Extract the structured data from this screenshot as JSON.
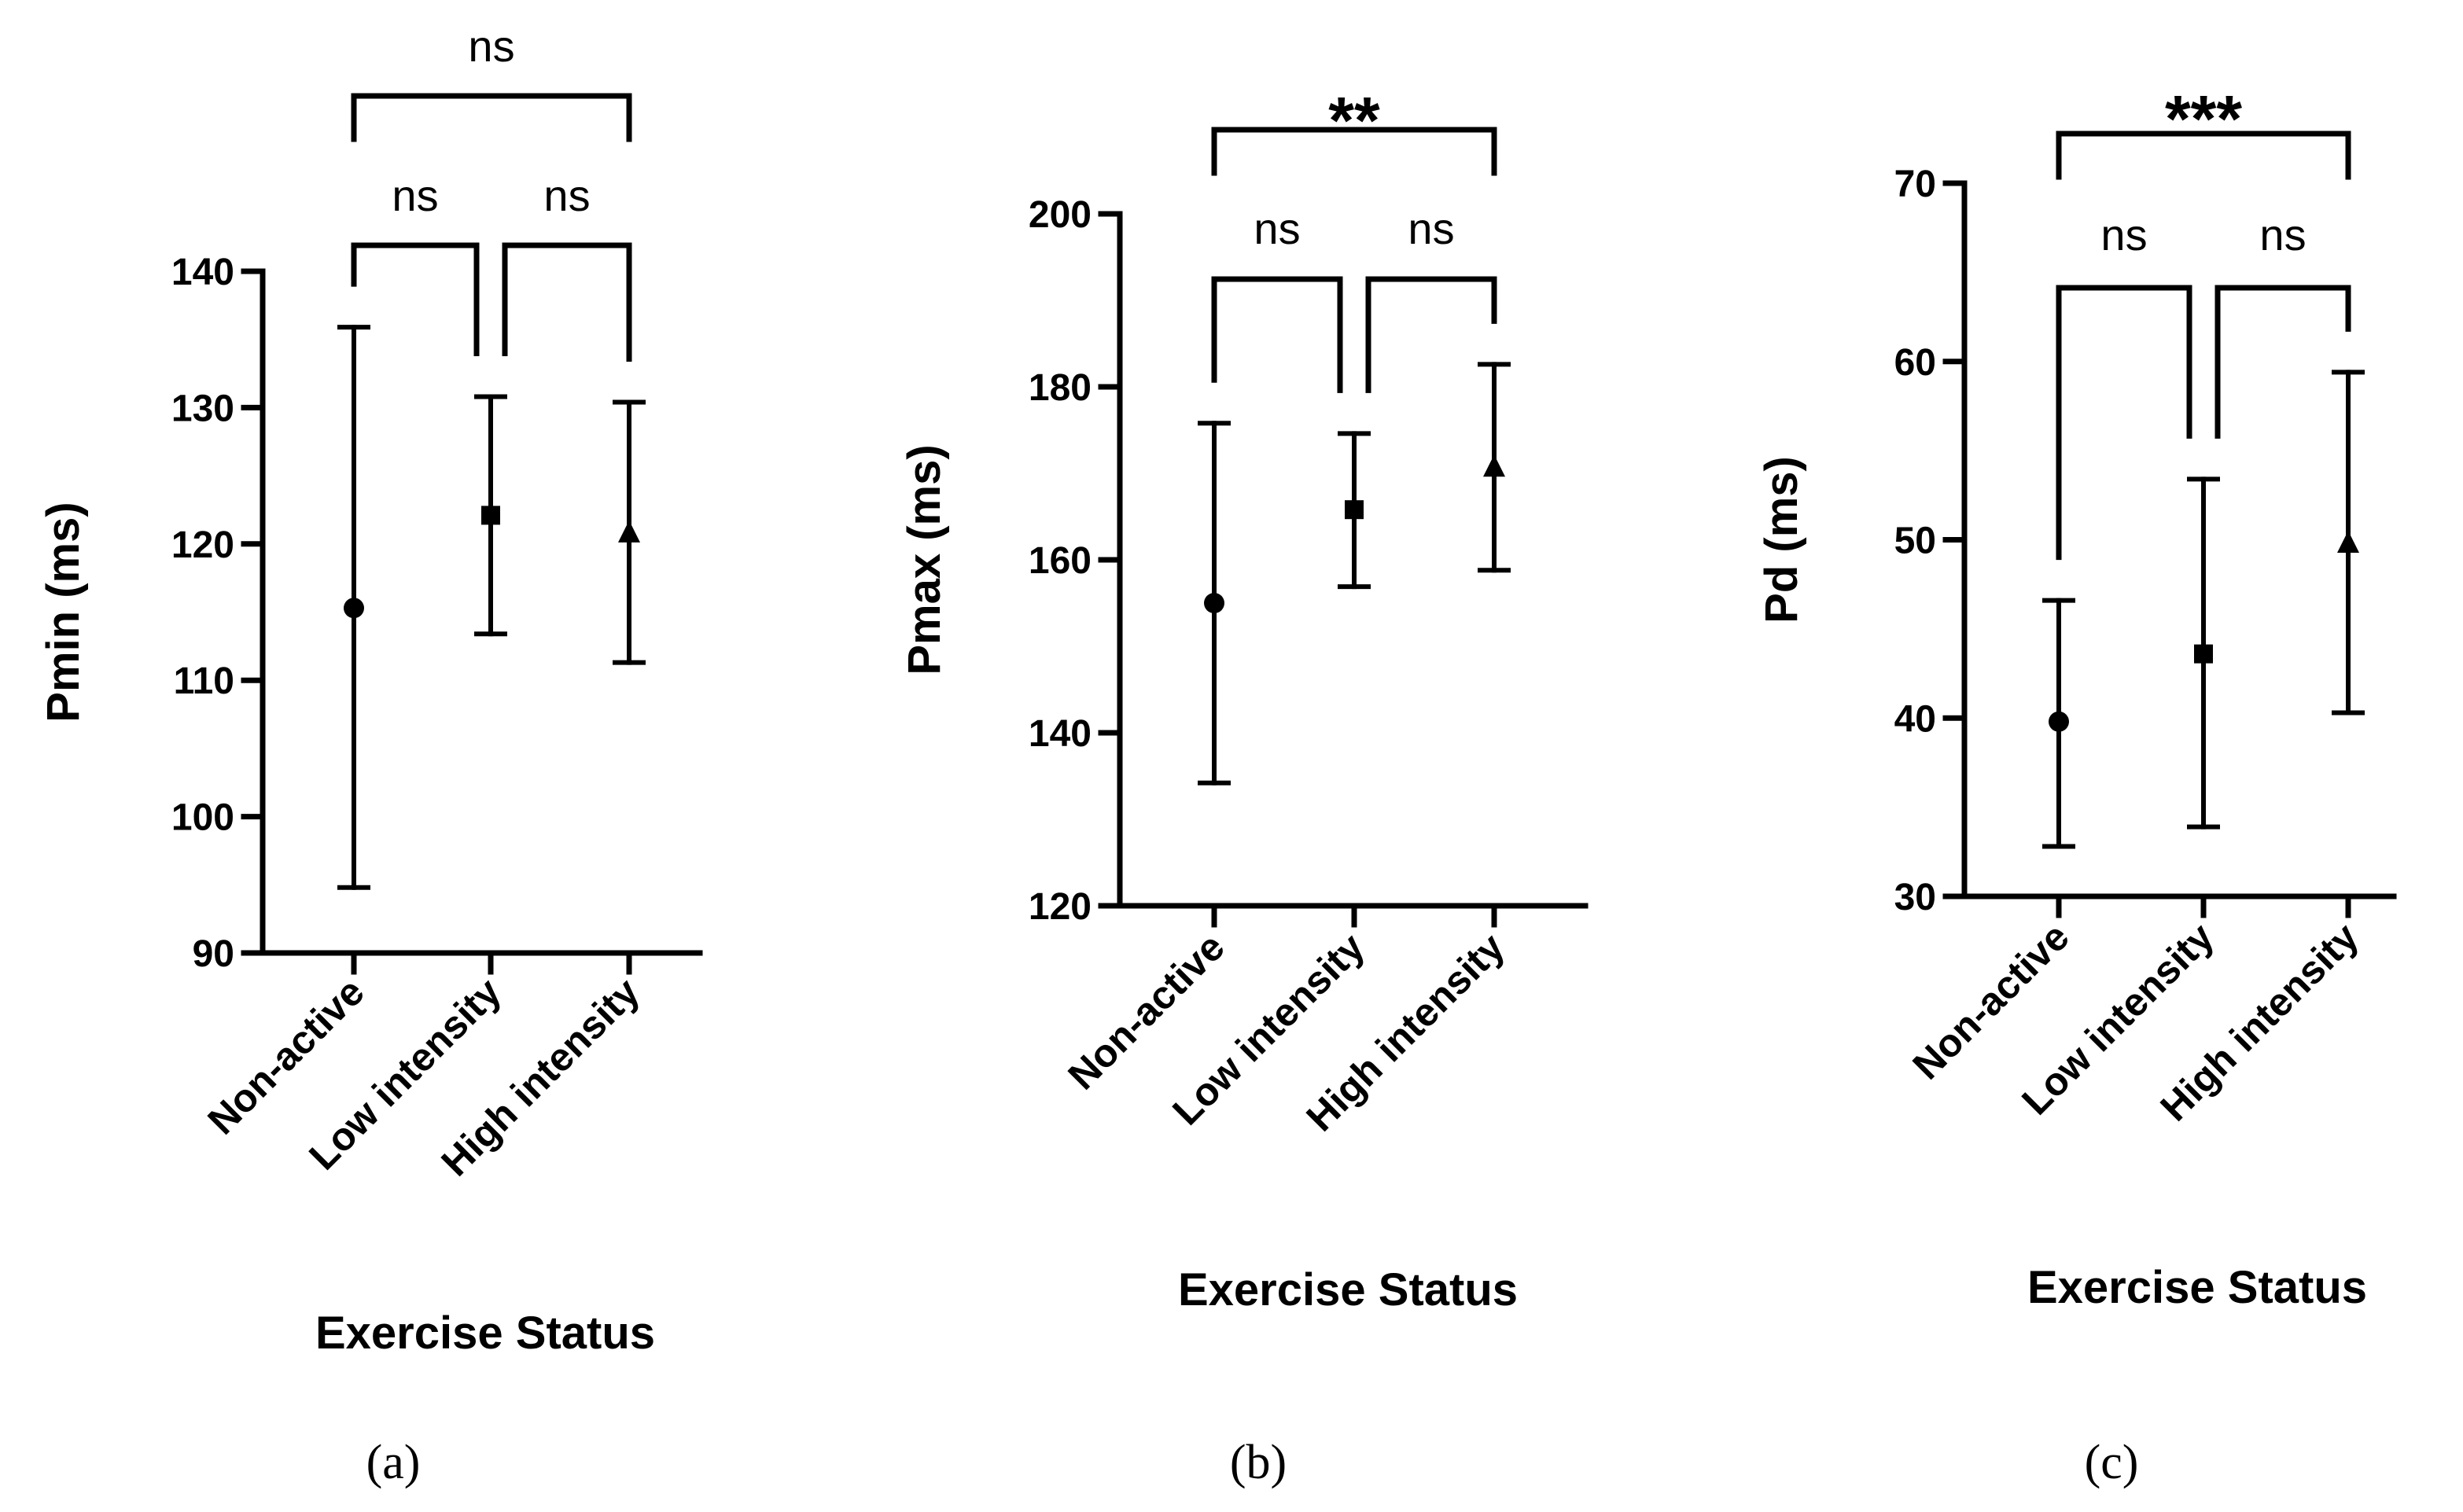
{
  "chart_data": [
    {
      "type": "scatter",
      "panel_label": "(a)",
      "xlabel": "Exercise Status",
      "ylabel": "Pmin (ms)",
      "categories": [
        "Non-active",
        "Low intensity",
        "High intensity"
      ],
      "ylim": [
        90,
        140
      ],
      "yticks": [
        90,
        100,
        110,
        120,
        130,
        140
      ],
      "series": [
        {
          "name": "Non-active",
          "marker": "circle",
          "mean": 115.3,
          "low": 94.8,
          "high": 135.9
        },
        {
          "name": "Low intensity",
          "marker": "square",
          "mean": 122.1,
          "low": 113.4,
          "high": 130.8
        },
        {
          "name": "High intensity",
          "marker": "triangle",
          "mean": 120.8,
          "low": 111.3,
          "high": 130.4
        }
      ],
      "comparisons": [
        {
          "from": 0,
          "to": 1,
          "label": "ns",
          "level": 0
        },
        {
          "from": 1,
          "to": 2,
          "label": "ns",
          "level": 0
        },
        {
          "from": 0,
          "to": 2,
          "label": "ns",
          "level": 1
        }
      ]
    },
    {
      "type": "scatter",
      "panel_label": "(b)",
      "xlabel": "Exercise Status",
      "ylabel": "Pmax (ms)",
      "categories": [
        "Non-active",
        "Low intensity",
        "High intensity"
      ],
      "ylim": [
        120,
        200
      ],
      "yticks": [
        120,
        140,
        160,
        180,
        200
      ],
      "series": [
        {
          "name": "Non-active",
          "marker": "circle",
          "mean": 155.0,
          "low": 134.2,
          "high": 175.8
        },
        {
          "name": "Low intensity",
          "marker": "square",
          "mean": 165.8,
          "low": 156.9,
          "high": 174.6
        },
        {
          "name": "High intensity",
          "marker": "triangle",
          "mean": 170.7,
          "low": 158.8,
          "high": 182.6
        }
      ],
      "comparisons": [
        {
          "from": 0,
          "to": 1,
          "label": "ns",
          "level": 0
        },
        {
          "from": 1,
          "to": 2,
          "label": "ns",
          "level": 0
        },
        {
          "from": 0,
          "to": 2,
          "label": "**",
          "level": 1
        }
      ]
    },
    {
      "type": "scatter",
      "panel_label": "(c)",
      "xlabel": "Exercise Status",
      "ylabel": "Pd (ms)",
      "categories": [
        "Non-active",
        "Low intensity",
        "High intensity"
      ],
      "ylim": [
        30,
        70
      ],
      "yticks": [
        30,
        40,
        50,
        60,
        70
      ],
      "series": [
        {
          "name": "Non-active",
          "marker": "circle",
          "mean": 39.8,
          "low": 32.8,
          "high": 46.6
        },
        {
          "name": "Low intensity",
          "marker": "square",
          "mean": 43.6,
          "low": 33.9,
          "high": 53.4
        },
        {
          "name": "High intensity",
          "marker": "triangle",
          "mean": 49.8,
          "low": 40.3,
          "high": 59.4
        }
      ],
      "comparisons": [
        {
          "from": 0,
          "to": 1,
          "label": "ns",
          "level": 0
        },
        {
          "from": 1,
          "to": 2,
          "label": "ns",
          "level": 0
        },
        {
          "from": 0,
          "to": 2,
          "label": "***",
          "level": 1
        }
      ]
    }
  ]
}
